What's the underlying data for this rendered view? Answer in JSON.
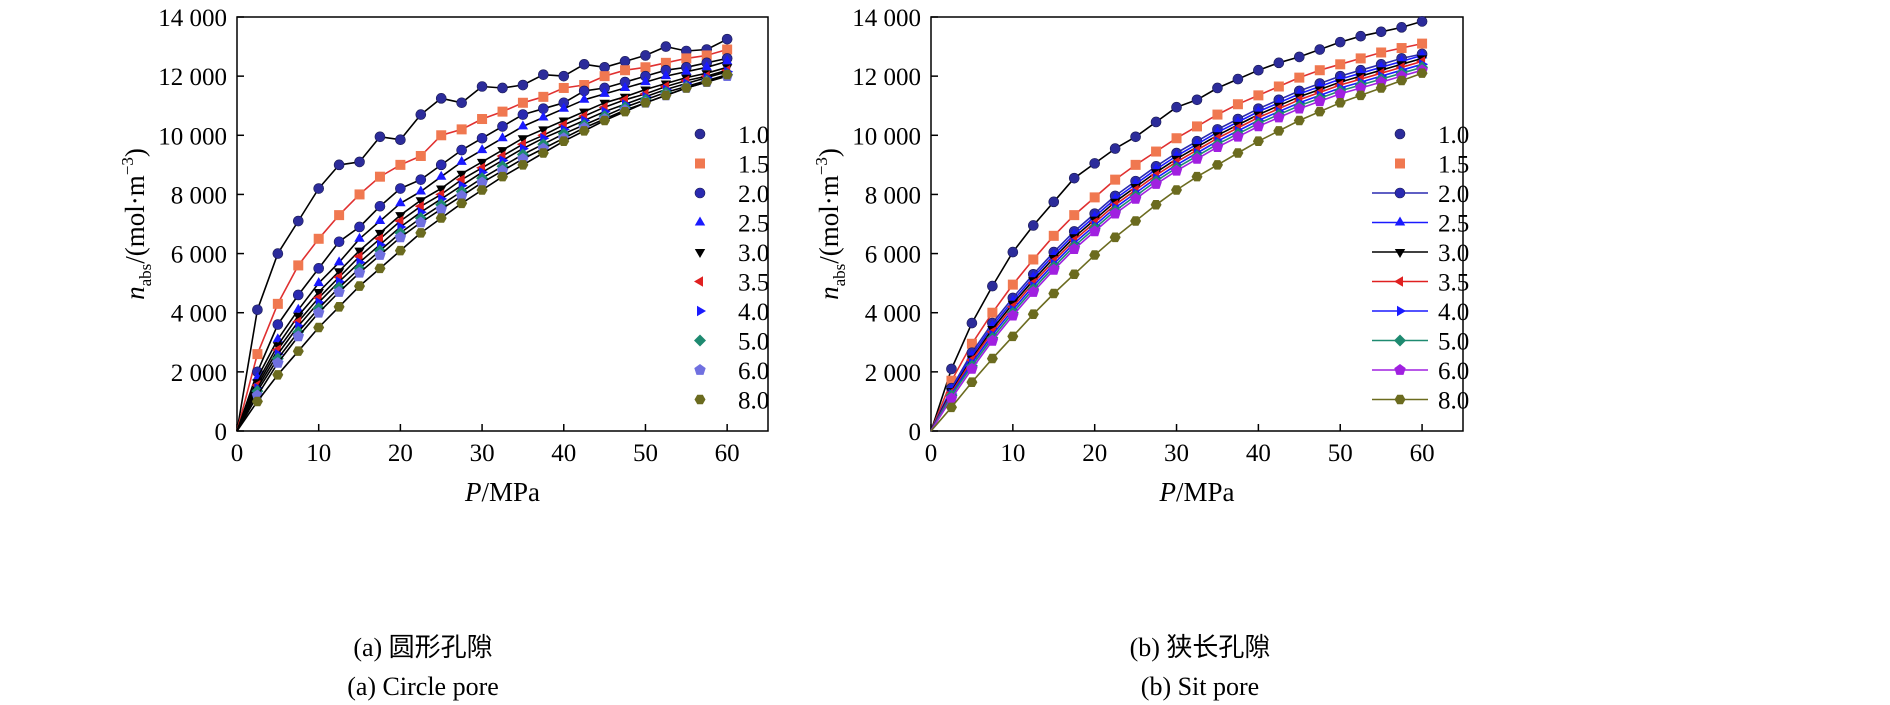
{
  "chart_data": [
    {
      "type": "scatter",
      "panel": "a",
      "caption_cn": "(a) 圆形孔隙",
      "caption_en": "(a) Circle pore",
      "xlabel": "P/MPa",
      "ylabel": "nabs/(mol·m−3)",
      "xlim": [
        0,
        65
      ],
      "ylim": [
        0,
        14000
      ],
      "xticks": [
        0,
        10,
        20,
        30,
        40,
        50,
        60
      ],
      "xtick_labels": [
        "0",
        "10",
        "20",
        "30",
        "40",
        "50",
        "60"
      ],
      "yticks": [
        0,
        2000,
        4000,
        6000,
        8000,
        10000,
        12000,
        14000
      ],
      "ytick_labels": [
        "0",
        "2 000",
        "4 000",
        "6 000",
        "8 000",
        "10 000",
        "12 000",
        "14 000"
      ],
      "legend_position": "right",
      "pressures": [
        0,
        2.5,
        5,
        7.5,
        10,
        12.5,
        15,
        17.5,
        20,
        22.5,
        25,
        27.5,
        30,
        32.5,
        35,
        37.5,
        40,
        42.5,
        45,
        47.5,
        50,
        52.5,
        55,
        57.5,
        60
      ],
      "series": [
        {
          "name": "1.0",
          "marker": "sphere",
          "color": "#2c2c9a",
          "line_color": "#000000",
          "values": [
            0,
            4100,
            6000,
            7100,
            8200,
            9000,
            9100,
            9950,
            9850,
            10700,
            11250,
            11100,
            11650,
            11600,
            11700,
            12050,
            12000,
            12400,
            12300,
            12500,
            12700,
            13000,
            12850,
            12900,
            13250
          ]
        },
        {
          "name": "1.5",
          "marker": "square",
          "color": "#f07850",
          "line_color": "#e03030",
          "values": [
            0,
            2600,
            4300,
            5600,
            6500,
            7300,
            8000,
            8600,
            9000,
            9300,
            10000,
            10200,
            10550,
            10800,
            11100,
            11300,
            11600,
            11700,
            12000,
            12200,
            12300,
            12450,
            12600,
            12700,
            12900
          ]
        },
        {
          "name": "2.0",
          "marker": "circle",
          "color": "#2a2ab0",
          "line_color": "#000000",
          "values": [
            0,
            2000,
            3600,
            4600,
            5500,
            6400,
            6900,
            7600,
            8200,
            8500,
            9000,
            9500,
            9900,
            10300,
            10700,
            10900,
            11100,
            11500,
            11600,
            11800,
            12000,
            12200,
            12300,
            12450,
            12600
          ]
        },
        {
          "name": "2.5",
          "marker": "triangle-up",
          "color": "#1a1aff",
          "line_color": "#000000",
          "values": [
            0,
            1800,
            3100,
            4100,
            5000,
            5700,
            6500,
            7100,
            7700,
            8100,
            8600,
            9100,
            9500,
            9900,
            10300,
            10600,
            10900,
            11200,
            11400,
            11600,
            11800,
            12000,
            12150,
            12300,
            12500
          ]
        },
        {
          "name": "3.0",
          "marker": "triangle-down",
          "color": "#000000",
          "line_color": "#000000",
          "values": [
            0,
            1650,
            2900,
            3900,
            4700,
            5400,
            6100,
            6700,
            7300,
            7800,
            8200,
            8700,
            9100,
            9500,
            9900,
            10200,
            10500,
            10800,
            11100,
            11300,
            11550,
            11750,
            11950,
            12100,
            12300
          ]
        },
        {
          "name": "3.5",
          "marker": "triangle-left",
          "color": "#e02020",
          "line_color": "#000000",
          "values": [
            0,
            1550,
            2750,
            3700,
            4500,
            5200,
            5900,
            6500,
            7100,
            7600,
            8000,
            8500,
            8900,
            9300,
            9700,
            10000,
            10350,
            10650,
            10950,
            11200,
            11400,
            11650,
            11850,
            12000,
            12200
          ]
        },
        {
          "name": "4.0",
          "marker": "triangle-right",
          "color": "#1a1aff",
          "line_color": "#000000",
          "values": [
            0,
            1450,
            2600,
            3550,
            4350,
            5050,
            5700,
            6300,
            6900,
            7400,
            7850,
            8300,
            8750,
            9150,
            9550,
            9900,
            10200,
            10500,
            10800,
            11050,
            11300,
            11550,
            11750,
            11950,
            12150
          ]
        },
        {
          "name": "5.0",
          "marker": "diamond",
          "color": "#1e8a70",
          "line_color": "#000000",
          "values": [
            0,
            1350,
            2450,
            3350,
            4150,
            4850,
            5500,
            6100,
            6700,
            7200,
            7650,
            8100,
            8550,
            8950,
            9350,
            9700,
            10050,
            10350,
            10650,
            10950,
            11200,
            11450,
            11650,
            11850,
            12050
          ]
        },
        {
          "name": "6.0",
          "marker": "pentagon",
          "color": "#7070e0",
          "line_color": "#000000",
          "values": [
            0,
            1200,
            2300,
            3200,
            4000,
            4700,
            5350,
            5950,
            6550,
            7050,
            7500,
            7950,
            8400,
            8800,
            9200,
            9550,
            9900,
            10250,
            10550,
            10850,
            11100,
            11350,
            11600,
            11800,
            12000
          ]
        },
        {
          "name": "8.0",
          "marker": "hexagon",
          "color": "#6b6b1f",
          "line_color": "#000000",
          "values": [
            0,
            1000,
            1900,
            2700,
            3500,
            4200,
            4900,
            5500,
            6100,
            6700,
            7200,
            7700,
            8150,
            8600,
            9000,
            9400,
            9800,
            10150,
            10500,
            10800,
            11100,
            11350,
            11600,
            11800,
            12050
          ]
        }
      ]
    },
    {
      "type": "line",
      "panel": "b",
      "caption_cn": "(b) 狭长孔隙",
      "caption_en": "(b) Sit pore",
      "xlabel": "P/MPa",
      "ylabel": "nabs/(mol·m−3)",
      "xlim": [
        0,
        65
      ],
      "ylim": [
        0,
        14000
      ],
      "xticks": [
        0,
        10,
        20,
        30,
        40,
        50,
        60
      ],
      "xtick_labels": [
        "0",
        "10",
        "20",
        "30",
        "40",
        "50",
        "60"
      ],
      "yticks": [
        0,
        2000,
        4000,
        6000,
        8000,
        10000,
        12000,
        14000
      ],
      "ytick_labels": [
        "0",
        "2 000",
        "4 000",
        "6 000",
        "8 000",
        "10 000",
        "12 000",
        "14 000"
      ],
      "legend_position": "right",
      "pressures": [
        0,
        2.5,
        5,
        7.5,
        10,
        12.5,
        15,
        17.5,
        20,
        22.5,
        25,
        27.5,
        30,
        32.5,
        35,
        37.5,
        40,
        42.5,
        45,
        47.5,
        50,
        52.5,
        55,
        57.5,
        60
      ],
      "series": [
        {
          "name": "1.0",
          "marker": "sphere",
          "color": "#2c2c9a",
          "line_color": "#000000",
          "legend_line": false,
          "values": [
            0,
            2100,
            3650,
            4900,
            6050,
            6950,
            7750,
            8550,
            9050,
            9550,
            9950,
            10450,
            10950,
            11200,
            11600,
            11900,
            12200,
            12450,
            12650,
            12900,
            13150,
            13350,
            13500,
            13650,
            13850
          ]
        },
        {
          "name": "1.5",
          "marker": "square",
          "color": "#f07850",
          "line_color": "#e03030",
          "legend_line": false,
          "values": [
            0,
            1700,
            2950,
            4000,
            4950,
            5800,
            6600,
            7300,
            7900,
            8500,
            9000,
            9450,
            9900,
            10300,
            10700,
            11050,
            11350,
            11650,
            11950,
            12200,
            12400,
            12600,
            12800,
            12950,
            13100
          ]
        },
        {
          "name": "2.0",
          "marker": "circle",
          "color": "#2a2ab0",
          "line_color": "#2a2ab0",
          "legend_line": true,
          "values": [
            0,
            1450,
            2650,
            3650,
            4500,
            5300,
            6050,
            6750,
            7350,
            7950,
            8450,
            8950,
            9400,
            9800,
            10200,
            10550,
            10900,
            11200,
            11500,
            11750,
            12000,
            12200,
            12400,
            12600,
            12750
          ]
        },
        {
          "name": "2.5",
          "marker": "triangle-up",
          "color": "#1a1aff",
          "line_color": "#1a1aff",
          "legend_line": true,
          "values": [
            0,
            1400,
            2550,
            3550,
            4400,
            5200,
            5950,
            6650,
            7250,
            7850,
            8350,
            8850,
            9300,
            9700,
            10100,
            10450,
            10800,
            11100,
            11400,
            11650,
            11900,
            12100,
            12300,
            12500,
            12700
          ]
        },
        {
          "name": "3.0",
          "marker": "triangle-down",
          "color": "#000000",
          "line_color": "#000000",
          "legend_line": true,
          "values": [
            0,
            1350,
            2450,
            3450,
            4300,
            5100,
            5850,
            6550,
            7150,
            7750,
            8250,
            8750,
            9200,
            9600,
            10000,
            10350,
            10700,
            11000,
            11300,
            11550,
            11800,
            12000,
            12200,
            12400,
            12600
          ]
        },
        {
          "name": "3.5",
          "marker": "triangle-left",
          "color": "#e02020",
          "line_color": "#e02020",
          "legend_line": true,
          "values": [
            0,
            1300,
            2400,
            3350,
            4200,
            5000,
            5750,
            6450,
            7050,
            7650,
            8150,
            8650,
            9100,
            9500,
            9900,
            10250,
            10600,
            10900,
            11200,
            11450,
            11700,
            11900,
            12100,
            12300,
            12500
          ]
        },
        {
          "name": "4.0",
          "marker": "triangle-right",
          "color": "#1a1aff",
          "line_color": "#1a1aff",
          "legend_line": true,
          "values": [
            0,
            1250,
            2300,
            3250,
            4100,
            4900,
            5650,
            6350,
            6950,
            7550,
            8050,
            8550,
            9000,
            9400,
            9800,
            10150,
            10500,
            10800,
            11100,
            11350,
            11600,
            11800,
            12000,
            12200,
            12400
          ]
        },
        {
          "name": "5.0",
          "marker": "diamond",
          "color": "#1e8a70",
          "line_color": "#1e8a70",
          "legend_line": true,
          "values": [
            0,
            1200,
            2200,
            3150,
            4000,
            4800,
            5550,
            6250,
            6850,
            7450,
            7950,
            8450,
            8900,
            9300,
            9700,
            10050,
            10400,
            10700,
            11000,
            11250,
            11500,
            11700,
            11900,
            12100,
            12300
          ]
        },
        {
          "name": "6.0",
          "marker": "pentagon",
          "color": "#a020e0",
          "line_color": "#a020e0",
          "legend_line": true,
          "values": [
            0,
            1100,
            2100,
            3050,
            3900,
            4700,
            5450,
            6150,
            6750,
            7350,
            7850,
            8350,
            8800,
            9200,
            9600,
            9950,
            10300,
            10600,
            10900,
            11150,
            11400,
            11600,
            11800,
            12000,
            12200
          ]
        },
        {
          "name": "8.0",
          "marker": "hexagon",
          "color": "#6b6b1f",
          "line_color": "#6b6b1f",
          "legend_line": true,
          "values": [
            0,
            800,
            1650,
            2450,
            3200,
            3950,
            4650,
            5300,
            5950,
            6550,
            7100,
            7650,
            8150,
            8600,
            9000,
            9400,
            9800,
            10150,
            10500,
            10800,
            11100,
            11350,
            11600,
            11850,
            12100
          ]
        }
      ]
    }
  ]
}
